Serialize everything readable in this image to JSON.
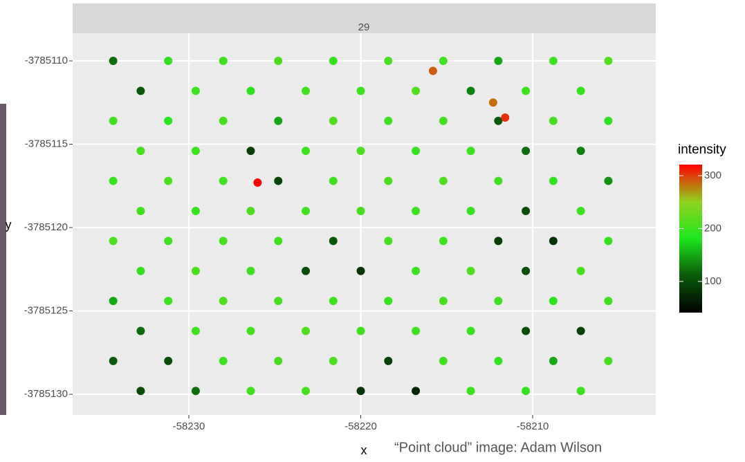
{
  "chart_data": {
    "type": "scatter",
    "strip": "29",
    "x_label": "x",
    "y_label": "y",
    "legend_title": "intensity",
    "caption": "“Point cloud” image: Adam Wilson",
    "xlim": [
      -58236.76,
      -58202.84
    ],
    "xticks": [
      -58230,
      -58220,
      -58210
    ],
    "ylim": [
      -3785131.24,
      -3785108.34
    ],
    "yticks": [
      -3785110,
      -3785115,
      -3785120,
      -3785125,
      -3785130
    ],
    "clim": [
      41,
      321
    ],
    "cticks": [
      100,
      200,
      300
    ],
    "colors": [
      "#000000",
      "#0a5a0a",
      "#1ee61e",
      "#8fd21e",
      "#ff0000"
    ],
    "grid": true,
    "points": [
      [
        -58234.4,
        -3785110,
        120
      ],
      [
        -58231.2,
        -3785110,
        190
      ],
      [
        -58228,
        -3785110,
        200
      ],
      [
        -58224.8,
        -3785110,
        210
      ],
      [
        -58221.6,
        -3785110,
        195
      ],
      [
        -58218.4,
        -3785110,
        205
      ],
      [
        -58215.2,
        -3785110,
        200
      ],
      [
        -58212,
        -3785110,
        150
      ],
      [
        -58208.8,
        -3785110,
        200
      ],
      [
        -58205.6,
        -3785110,
        210
      ],
      [
        -58232.8,
        -3785111.8,
        110
      ],
      [
        -58229.6,
        -3785111.8,
        200
      ],
      [
        -58226.4,
        -3785111.8,
        190
      ],
      [
        -58223.2,
        -3785111.8,
        205
      ],
      [
        -58220,
        -3785111.8,
        200
      ],
      [
        -58216.8,
        -3785111.8,
        210
      ],
      [
        -58213.6,
        -3785111.8,
        130
      ],
      [
        -58210.4,
        -3785111.8,
        200
      ],
      [
        -58207.2,
        -3785111.8,
        195
      ],
      [
        -58234.4,
        -3785113.6,
        200
      ],
      [
        -58231.2,
        -3785113.6,
        185
      ],
      [
        -58228,
        -3785113.6,
        205
      ],
      [
        -58224.8,
        -3785113.6,
        150
      ],
      [
        -58221.6,
        -3785113.6,
        210
      ],
      [
        -58218.4,
        -3785113.6,
        200
      ],
      [
        -58215.2,
        -3785113.6,
        200
      ],
      [
        -58212,
        -3785113.6,
        110
      ],
      [
        -58208.8,
        -3785113.6,
        205
      ],
      [
        -58205.6,
        -3785113.6,
        190
      ],
      [
        -58232.8,
        -3785115.4,
        205
      ],
      [
        -58229.6,
        -3785115.4,
        200
      ],
      [
        -58226.4,
        -3785115.4,
        90
      ],
      [
        -58223.2,
        -3785115.4,
        200
      ],
      [
        -58220,
        -3785115.4,
        210
      ],
      [
        -58216.8,
        -3785115.4,
        195
      ],
      [
        -58213.6,
        -3785115.4,
        200
      ],
      [
        -58210.4,
        -3785115.4,
        120
      ],
      [
        -58207.2,
        -3785115.4,
        130
      ],
      [
        -58234.4,
        -3785117.2,
        195
      ],
      [
        -58231.2,
        -3785117.2,
        210
      ],
      [
        -58228,
        -3785117.2,
        200
      ],
      [
        -58224.8,
        -3785117.2,
        95
      ],
      [
        -58221.6,
        -3785117.2,
        200
      ],
      [
        -58218.4,
        -3785117.2,
        205
      ],
      [
        -58215.2,
        -3785117.2,
        210
      ],
      [
        -58212,
        -3785117.2,
        200
      ],
      [
        -58208.8,
        -3785117.2,
        195
      ],
      [
        -58205.6,
        -3785117.2,
        140
      ],
      [
        -58232.8,
        -3785119,
        200
      ],
      [
        -58229.6,
        -3785119,
        195
      ],
      [
        -58226.4,
        -3785119,
        210
      ],
      [
        -58223.2,
        -3785119,
        200
      ],
      [
        -58220,
        -3785119,
        205
      ],
      [
        -58216.8,
        -3785119,
        200
      ],
      [
        -58213.6,
        -3785119,
        195
      ],
      [
        -58210.4,
        -3785119,
        100
      ],
      [
        -58207.2,
        -3785119,
        200
      ],
      [
        -58234.4,
        -3785120.8,
        210
      ],
      [
        -58231.2,
        -3785120.8,
        200
      ],
      [
        -58228,
        -3785120.8,
        205
      ],
      [
        -58224.8,
        -3785120.8,
        200
      ],
      [
        -58221.6,
        -3785120.8,
        110
      ],
      [
        -58218.4,
        -3785120.8,
        205
      ],
      [
        -58215.2,
        -3785120.8,
        200
      ],
      [
        -58212,
        -3785120.8,
        90
      ],
      [
        -58208.8,
        -3785120.8,
        80
      ],
      [
        -58205.6,
        -3785120.8,
        195
      ],
      [
        -58232.8,
        -3785122.6,
        195
      ],
      [
        -58229.6,
        -3785122.6,
        205
      ],
      [
        -58226.4,
        -3785122.6,
        200
      ],
      [
        -58223.2,
        -3785122.6,
        100
      ],
      [
        -58220,
        -3785122.6,
        80
      ],
      [
        -58216.8,
        -3785122.6,
        200
      ],
      [
        -58213.6,
        -3785122.6,
        210
      ],
      [
        -58210.4,
        -3785122.6,
        100
      ],
      [
        -58207.2,
        -3785122.6,
        205
      ],
      [
        -58234.4,
        -3785124.4,
        150
      ],
      [
        -58231.2,
        -3785124.4,
        200
      ],
      [
        -58228,
        -3785124.4,
        210
      ],
      [
        -58224.8,
        -3785124.4,
        205
      ],
      [
        -58221.6,
        -3785124.4,
        200
      ],
      [
        -58218.4,
        -3785124.4,
        195
      ],
      [
        -58215.2,
        -3785124.4,
        205
      ],
      [
        -58212,
        -3785124.4,
        200
      ],
      [
        -58208.8,
        -3785124.4,
        190
      ],
      [
        -58205.6,
        -3785124.4,
        200
      ],
      [
        -58232.8,
        -3785126.2,
        120
      ],
      [
        -58229.6,
        -3785126.2,
        200
      ],
      [
        -58226.4,
        -3785126.2,
        205
      ],
      [
        -58223.2,
        -3785126.2,
        210
      ],
      [
        -58220,
        -3785126.2,
        200
      ],
      [
        -58216.8,
        -3785126.2,
        200
      ],
      [
        -58213.6,
        -3785126.2,
        195
      ],
      [
        -58210.4,
        -3785126.2,
        100
      ],
      [
        -58207.2,
        -3785126.2,
        90
      ],
      [
        -58234.4,
        -3785128,
        110
      ],
      [
        -58231.2,
        -3785128,
        100
      ],
      [
        -58228,
        -3785128,
        200
      ],
      [
        -58224.8,
        -3785128,
        205
      ],
      [
        -58221.6,
        -3785128,
        210
      ],
      [
        -58218.4,
        -3785128,
        90
      ],
      [
        -58215.2,
        -3785128,
        200
      ],
      [
        -58212,
        -3785128,
        195
      ],
      [
        -58208.8,
        -3785128,
        150
      ],
      [
        -58205.6,
        -3785128,
        205
      ],
      [
        -58232.8,
        -3785129.8,
        100
      ],
      [
        -58229.6,
        -3785129.8,
        120
      ],
      [
        -58226.4,
        -3785129.8,
        200
      ],
      [
        -58223.2,
        -3785129.8,
        205
      ],
      [
        -58220,
        -3785129.8,
        80
      ],
      [
        -58216.8,
        -3785129.8,
        70
      ],
      [
        -58213.6,
        -3785129.8,
        200
      ],
      [
        -58210.4,
        -3785129.8,
        195
      ],
      [
        -58207.2,
        -3785129.8,
        200
      ],
      [
        -58226,
        -3785117.3,
        321
      ],
      [
        -58215.8,
        -3785110.6,
        290
      ],
      [
        -58212.3,
        -3785112.5,
        285
      ],
      [
        -58211.6,
        -3785113.4,
        305
      ]
    ]
  }
}
